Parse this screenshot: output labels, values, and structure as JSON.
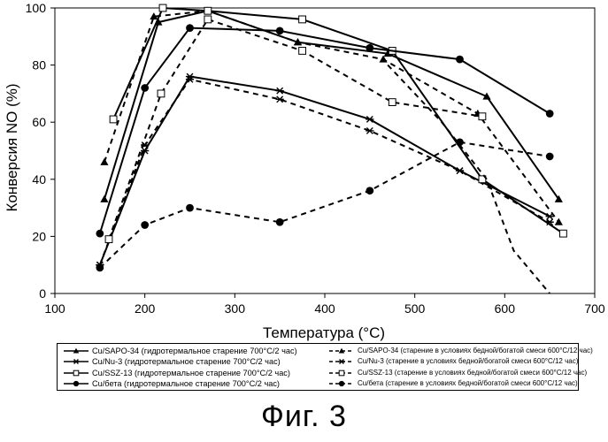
{
  "chart_data": {
    "type": "line",
    "title": "",
    "xlabel": "Температура (°C)",
    "ylabel": "Конверсия NO (%)",
    "xlim": [
      100,
      700
    ],
    "ylim": [
      0,
      100
    ],
    "xticks": [
      100,
      200,
      300,
      400,
      500,
      600,
      700
    ],
    "yticks": [
      0,
      20,
      40,
      60,
      80,
      100
    ],
    "grid": false,
    "legend_position": "bottom",
    "series": [
      {
        "name": "Cu/SAPO-34 (гидротермальное старение 700°C/2 час)",
        "style": "solid",
        "marker": "triangle",
        "x": [
          155,
          215,
          270,
          370,
          470,
          580,
          660
        ],
        "y": [
          33,
          95,
          99,
          88,
          84,
          69,
          33
        ]
      },
      {
        "name": "Cu/SAPO-34 (старение в условиях бедной/богатой смеси 600°C/12 час)",
        "style": "dashed",
        "marker": "triangle",
        "x": [
          155,
          210,
          270,
          370,
          465,
          570,
          660
        ],
        "y": [
          46,
          97,
          99,
          88,
          82,
          63,
          25
        ]
      },
      {
        "name": "Cu/Nu-3 (гидротермальное старение 700°C/2 час)",
        "style": "solid",
        "marker": "star",
        "x": [
          150,
          200,
          250,
          350,
          450,
          550,
          650
        ],
        "y": [
          10,
          50,
          76,
          71,
          61,
          43,
          27
        ]
      },
      {
        "name": "Cu/Nu-3 (старение в условиях бедной/богатой смеси 600°C/12 час)",
        "style": "dashed",
        "marker": "star",
        "x": [
          150,
          200,
          250,
          350,
          450,
          550,
          650
        ],
        "y": [
          10,
          52,
          75,
          68,
          57,
          43,
          25
        ]
      },
      {
        "name": "Cu/SSZ-13 (гидротермальное старение 700°C/2 час)",
        "style": "solid",
        "marker": "square",
        "x": [
          165,
          220,
          270,
          375,
          475,
          575,
          665
        ],
        "y": [
          61,
          100,
          99,
          96,
          85,
          40,
          21
        ]
      },
      {
        "name": "Cu/SSZ-13 (старение в условиях бедной/богатой смеси 600°C/12 час)",
        "style": "dashed",
        "marker": "square",
        "x": [
          160,
          218,
          270,
          375,
          475,
          575
        ],
        "y": [
          19,
          70,
          96,
          85,
          67,
          62
        ]
      },
      {
        "name": "Cu/бета (гидротермальное старение 700°C/2 час)",
        "style": "solid",
        "marker": "circle",
        "x": [
          150,
          200,
          250,
          350,
          450,
          550,
          650
        ],
        "y": [
          21,
          72,
          93,
          92,
          86,
          82,
          63
        ]
      },
      {
        "name": "Cu/бета (старение в условиях бедной/богатой смеси 600°C/12 час)",
        "style": "dashed",
        "marker": "circle",
        "x": [
          150,
          200,
          250,
          350,
          450,
          550,
          650
        ],
        "y": [
          9,
          24,
          30,
          25,
          36,
          53,
          48
        ]
      },
      {
        "name": "",
        "style": "dashed",
        "marker": "none",
        "x": [
          470,
          530,
          580,
          610,
          650
        ],
        "y": [
          80,
          60,
          40,
          15,
          0
        ]
      }
    ]
  },
  "legend": [
    {
      "label": "Cu/SAPO-34 (гидротермальное старение 700°C/2 час)",
      "style": "solid",
      "marker": "triangle"
    },
    {
      "label": "Cu/Nu-3 (гидротермальное старение 700°C/2 час)",
      "style": "solid",
      "marker": "star"
    },
    {
      "label": "Cu/SSZ-13 (гидротермальное старение 700°C/2 час)",
      "style": "solid",
      "marker": "square"
    },
    {
      "label": "Cu/бета (гидротермальное старение 700°C/2 час)",
      "style": "solid",
      "marker": "circle"
    },
    {
      "label": "Cu/SAPO-34 (старение в условиях бедной/богатой смеси 600°C/12 час)",
      "style": "dashed",
      "marker": "triangle"
    },
    {
      "label": "Cu/Nu-3 (старение в условиях бедной/богатой смеси 600°C/12 час)",
      "style": "dashed",
      "marker": "star"
    },
    {
      "label": "Cu/SSZ-13 (старение в условиях бедной/богатой смеси 600°C/12 час)",
      "style": "dashed",
      "marker": "square"
    },
    {
      "label": "Cu/бета (старение в условиях бедной/богатой смеси 600°C/12 час)",
      "style": "dashed",
      "marker": "circle"
    }
  ],
  "caption": "Фиг. 3"
}
